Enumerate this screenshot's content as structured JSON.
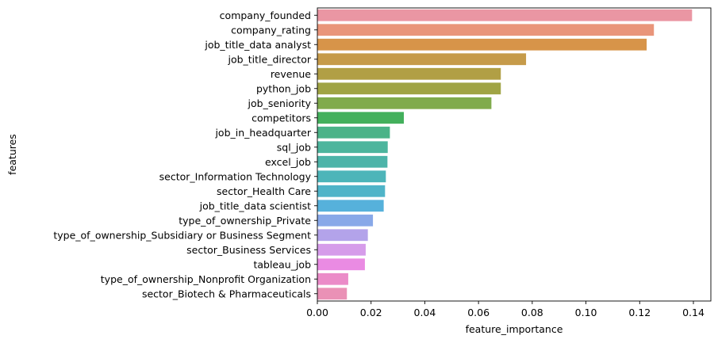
{
  "chart_data": {
    "type": "bar",
    "orientation": "horizontal",
    "xlabel": "feature_importance",
    "ylabel": "features",
    "xlim": [
      0,
      0.1465
    ],
    "xticks": [
      0.0,
      0.02,
      0.04,
      0.06,
      0.08,
      0.1,
      0.12,
      0.14
    ],
    "xtick_labels": [
      "0.00",
      "0.02",
      "0.04",
      "0.06",
      "0.08",
      "0.10",
      "0.12",
      "0.14"
    ],
    "grid": false,
    "categories": [
      "company_founded",
      "company_rating",
      "job_title_data analyst",
      "job_title_director",
      "revenue",
      "python_job",
      "job_seniority",
      "competitors",
      "job_in_headquarter",
      "sql_job",
      "excel_job",
      "sector_Information Technology",
      "sector_Health Care",
      "job_title_data scientist",
      "type_of_ownership_Private",
      "type_of_ownership_Subsidiary or Business Segment",
      "sector_Business Services",
      "tableau_job",
      "type_of_ownership_Nonprofit Organization",
      "sector_Biotech & Pharmaceuticals"
    ],
    "values": [
      0.1395,
      0.1253,
      0.1226,
      0.0777,
      0.0683,
      0.0683,
      0.0648,
      0.0322,
      0.027,
      0.0262,
      0.0261,
      0.0255,
      0.0252,
      0.0247,
      0.0207,
      0.0188,
      0.018,
      0.0177,
      0.0115,
      0.011
    ],
    "colors": [
      "#ea96a3",
      "#e9957a",
      "#d79449",
      "#c69b4a",
      "#b19f45",
      "#a0a444",
      "#80ab4c",
      "#43b05c",
      "#4bb388",
      "#4db59d",
      "#4db4a9",
      "#4db5b9",
      "#4fb4c8",
      "#56b1db",
      "#88a8e8",
      "#b3a3ea",
      "#d69cea",
      "#ea8be3",
      "#eb8bc8",
      "#ea91b6"
    ]
  }
}
